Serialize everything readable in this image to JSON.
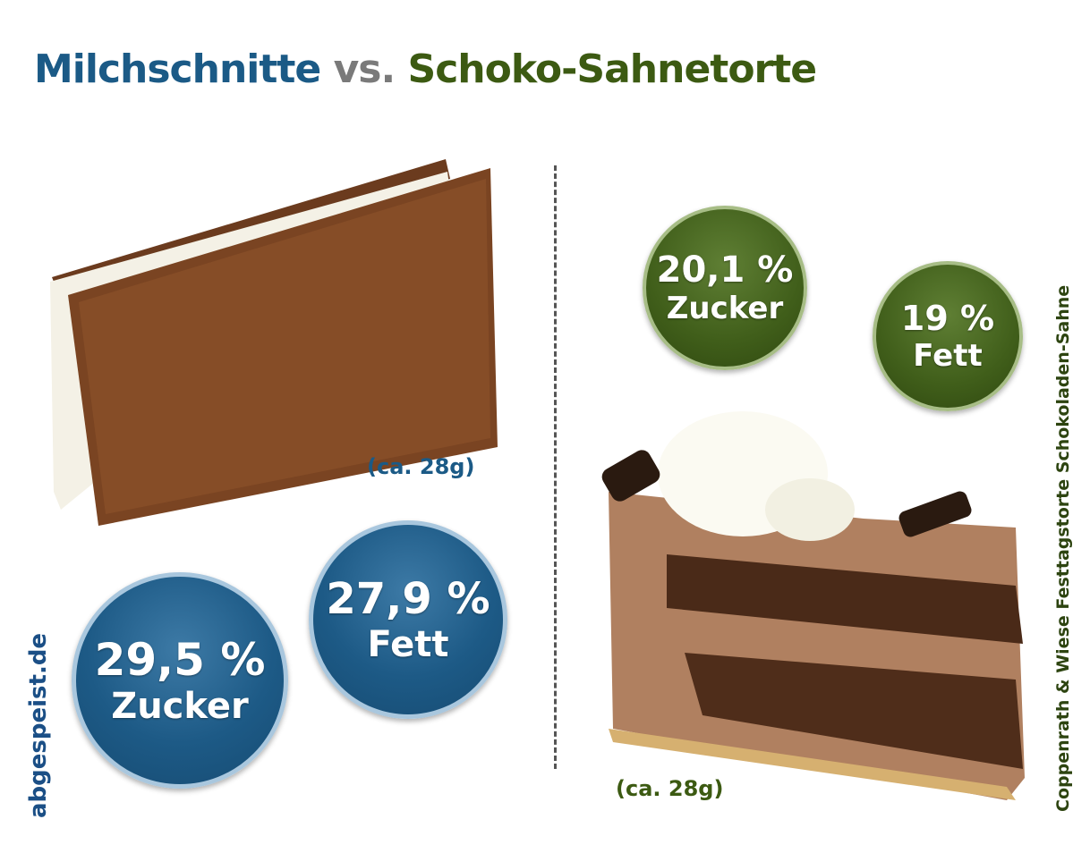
{
  "title": {
    "left": "Milchschnitte",
    "vs": "vs.",
    "right": "Schoko-Sahnetorte"
  },
  "left": {
    "weight": "(ca. 28g)",
    "sugar": {
      "value": "29,5 %",
      "label": "Zucker"
    },
    "fat": {
      "value": "27,9 %",
      "label": "Fett"
    },
    "color": "#1b5a86"
  },
  "right": {
    "weight": "(ca. 28g)",
    "sugar": {
      "value": "20,1 %",
      "label": "Zucker"
    },
    "fat": {
      "value": "19 %",
      "label": "Fett"
    },
    "color": "#3c5a12"
  },
  "source_site": "abgespeist.de",
  "product_credit": "Coppenrath & Wiese Festtagstorte Schokoladen-Sahne"
}
